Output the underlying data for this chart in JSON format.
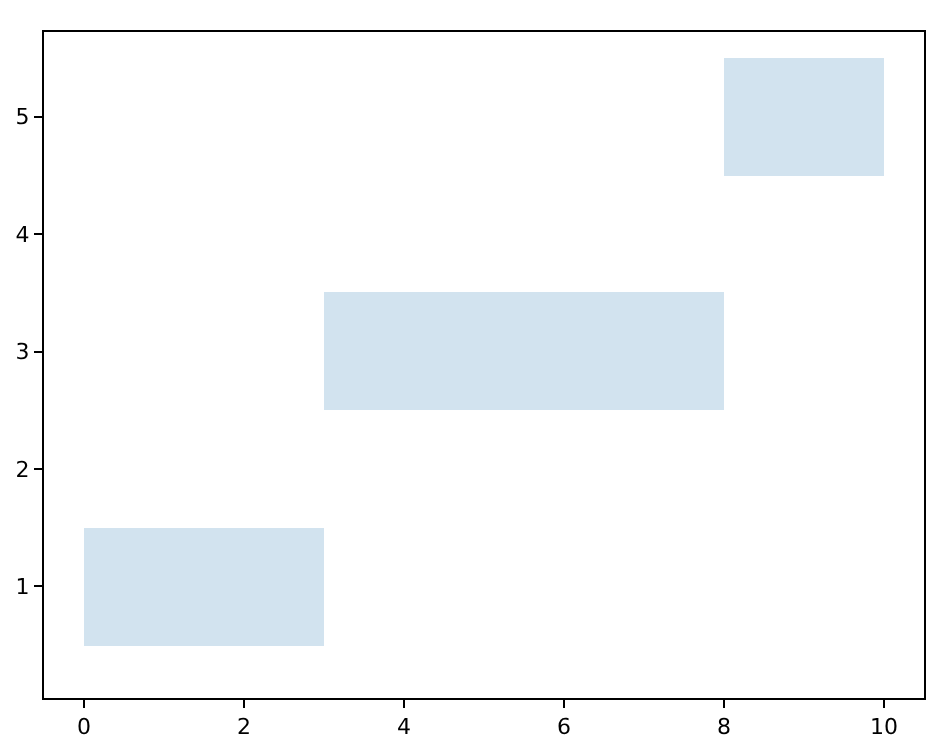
{
  "chart_data": {
    "type": "bar",
    "orientation": "horizontal",
    "x": [
      1,
      3,
      5
    ],
    "base": [
      0,
      3,
      8
    ],
    "values": [
      3,
      5,
      2
    ],
    "color": "#d2e3ef",
    "xlim": [
      -0.5,
      10.5
    ],
    "xticks": [
      0,
      2,
      4,
      6,
      8,
      10
    ],
    "ylim": [
      0.05,
      5.72
    ],
    "yticks": [
      1,
      2,
      3,
      4,
      5
    ]
  }
}
